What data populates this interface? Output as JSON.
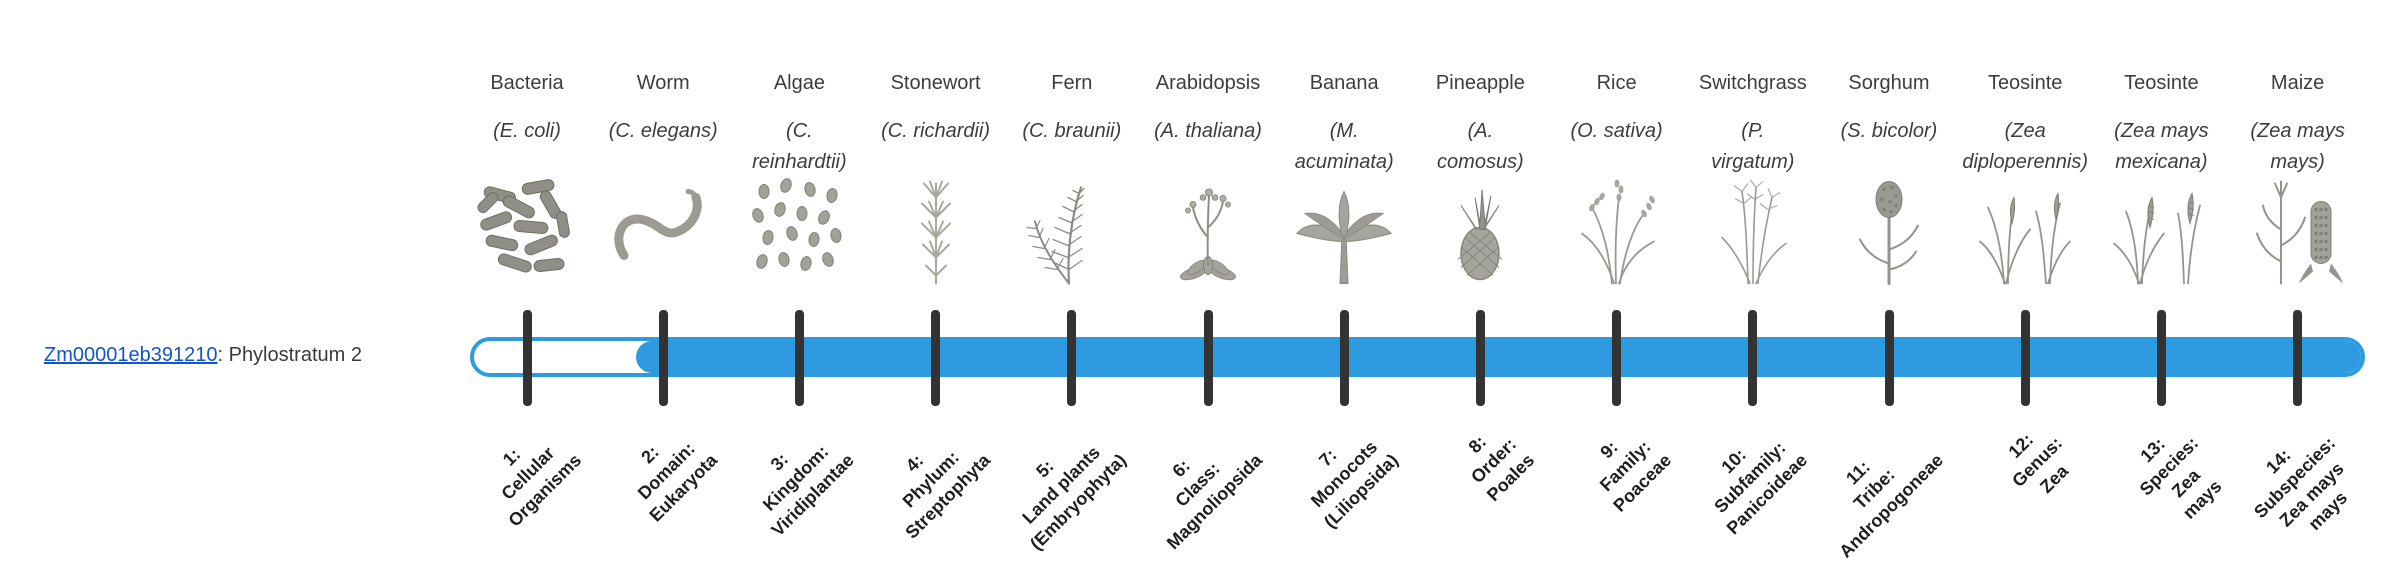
{
  "gene": {
    "id": "Zm00001eb391210",
    "label_suffix": ": Phylostratum 2"
  },
  "bar": {
    "fill_color": "#2E9BE0",
    "tick_color": "#333333",
    "filled_from_stratum": 2,
    "total_strata": 14
  },
  "colors": {
    "link": "#1155cc",
    "text": "#3d3d3d",
    "stratum_text": "#1f1f1f",
    "illustration": "#95948c"
  },
  "columns": [
    {
      "common_name": "Bacteria",
      "sci_lines": [
        "(E. coli)"
      ],
      "icon": "bacteria-image",
      "stratum_lines": [
        "1:",
        "Cellular",
        "Organisms"
      ]
    },
    {
      "common_name": "Worm",
      "sci_lines": [
        "(C. elegans)"
      ],
      "icon": "worm-image",
      "stratum_lines": [
        "2:",
        "Domain:",
        "Eukaryota"
      ]
    },
    {
      "common_name": "Algae",
      "sci_lines": [
        "(C.",
        "reinhardtii)"
      ],
      "icon": "algae-image",
      "stratum_lines": [
        "3:",
        "Kingdom:",
        "Viridiplantae"
      ]
    },
    {
      "common_name": "Stonewort",
      "sci_lines": [
        "(C. richardii)"
      ],
      "icon": "stonewort-image",
      "stratum_lines": [
        "4:",
        "Phylum:",
        "Streptophyta"
      ]
    },
    {
      "common_name": "Fern",
      "sci_lines": [
        "(C. braunii)"
      ],
      "icon": "fern-image",
      "stratum_lines": [
        "5:",
        "Land plants",
        "(Embryophyta)"
      ]
    },
    {
      "common_name": "Arabidopsis",
      "sci_lines": [
        "(A. thaliana)"
      ],
      "icon": "arabidopsis-image",
      "stratum_lines": [
        "6:",
        "Class:",
        "Magnoliopsida"
      ]
    },
    {
      "common_name": "Banana",
      "sci_lines": [
        "(M.",
        "acuminata)"
      ],
      "icon": "banana-image",
      "stratum_lines": [
        "7:",
        "Monocots",
        "(Liliopsida)"
      ]
    },
    {
      "common_name": "Pineapple",
      "sci_lines": [
        "(A.",
        "comosus)"
      ],
      "icon": "pineapple-image",
      "stratum_lines": [
        "8:",
        "Order:",
        "Poales"
      ]
    },
    {
      "common_name": "Rice",
      "sci_lines": [
        "(O. sativa)"
      ],
      "icon": "rice-image",
      "stratum_lines": [
        "9:",
        "Family:",
        "Poaceae"
      ]
    },
    {
      "common_name": "Switchgrass",
      "sci_lines": [
        "(P.",
        "virgatum)"
      ],
      "icon": "switchgrass-image",
      "stratum_lines": [
        "10:",
        "Subfamily:",
        "Panicoideae"
      ]
    },
    {
      "common_name": "Sorghum",
      "sci_lines": [
        "(S. bicolor)"
      ],
      "icon": "sorghum-image",
      "stratum_lines": [
        "11:",
        "Tribe:",
        "Andropogoneae"
      ]
    },
    {
      "common_name": "Teosinte",
      "sci_lines": [
        "(Zea",
        "diploperennis)"
      ],
      "icon": "teosinte-diploperennis-image",
      "stratum_lines": [
        "12:",
        "Genus:",
        "Zea"
      ]
    },
    {
      "common_name": "Teosinte",
      "sci_lines": [
        "(Zea mays",
        "mexicana)"
      ],
      "icon": "teosinte-mexicana-image",
      "stratum_lines": [
        "13:",
        "Species:",
        "Zea",
        "mays"
      ]
    },
    {
      "common_name": "Maize",
      "sci_lines": [
        "(Zea mays",
        "mays)"
      ],
      "icon": "maize-image",
      "stratum_lines": [
        "14:",
        "Subspecies:",
        "Zea mays",
        "mays"
      ]
    }
  ]
}
